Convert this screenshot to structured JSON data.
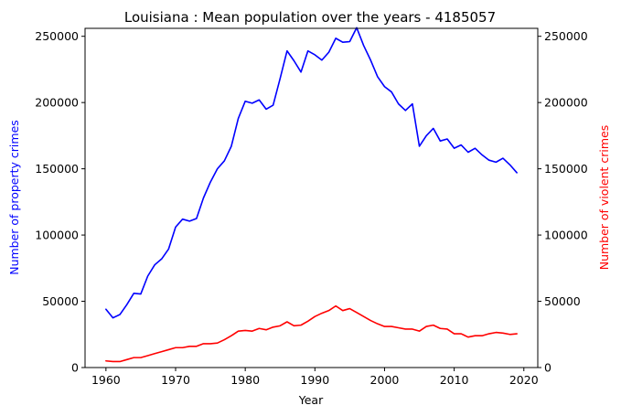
{
  "chart_data": {
    "type": "line",
    "title": "Louisiana : Mean population over the years - 4185057",
    "xlabel": "Year",
    "ylabel_left": "Number of property crimes",
    "ylabel_right": "Number of violent crimes",
    "xlim": [
      1957,
      2022
    ],
    "ylim": [
      0,
      256000
    ],
    "x_ticks": [
      1960,
      1970,
      1980,
      1990,
      2000,
      2010,
      2020
    ],
    "y_ticks": [
      0,
      50000,
      100000,
      150000,
      200000,
      250000
    ],
    "grid": false,
    "x": [
      1960,
      1961,
      1962,
      1963,
      1964,
      1965,
      1966,
      1967,
      1968,
      1969,
      1970,
      1971,
      1972,
      1973,
      1974,
      1975,
      1976,
      1977,
      1978,
      1979,
      1980,
      1981,
      1982,
      1983,
      1984,
      1985,
      1986,
      1987,
      1988,
      1989,
      1990,
      1991,
      1992,
      1993,
      1994,
      1995,
      1996,
      1997,
      1998,
      1999,
      2000,
      2001,
      2002,
      2003,
      2004,
      2005,
      2006,
      2007,
      2008,
      2009,
      2010,
      2011,
      2012,
      2013,
      2014,
      2015,
      2016,
      2017,
      2018,
      2019
    ],
    "series": [
      {
        "name": "Number of property crimes",
        "axis": "left",
        "color": "#0000ff",
        "values": [
          44000,
          37500,
          40000,
          47500,
          56000,
          55500,
          69000,
          77500,
          82000,
          89500,
          106000,
          112000,
          110500,
          112500,
          128000,
          140000,
          150000,
          156000,
          167000,
          188000,
          201000,
          199500,
          202000,
          195000,
          198000,
          218000,
          239000,
          231500,
          223000,
          239000,
          236000,
          232000,
          238000,
          248500,
          245500,
          246000,
          256500,
          243000,
          232000,
          219500,
          212000,
          208000,
          199000,
          194000,
          199000,
          167000,
          175000,
          180500,
          171000,
          172500,
          165500,
          168000,
          162500,
          165500,
          160500,
          156500,
          155000,
          158000,
          153000,
          147000
        ]
      },
      {
        "name": "Number of violent crimes",
        "axis": "right",
        "color": "#ff0000",
        "values": [
          5000,
          4500,
          4500,
          6000,
          7500,
          7500,
          9000,
          10500,
          12000,
          13500,
          15000,
          15000,
          16000,
          16000,
          18000,
          18000,
          18500,
          21000,
          24000,
          27500,
          28000,
          27500,
          29500,
          28500,
          30500,
          31500,
          34500,
          31500,
          32000,
          35000,
          38500,
          41000,
          43000,
          46500,
          43000,
          44500,
          41500,
          38500,
          35500,
          33000,
          31000,
          31000,
          30000,
          29000,
          29000,
          27500,
          31000,
          32000,
          29500,
          29000,
          25500,
          25500,
          23000,
          24000,
          24000,
          25500,
          26500,
          26000,
          25000,
          25500
        ]
      }
    ]
  }
}
